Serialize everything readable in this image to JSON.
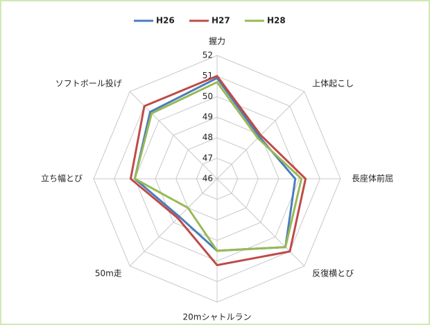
{
  "chart_data": {
    "type": "radar",
    "categories": [
      "握力",
      "上体起こし",
      "長座体前屈",
      "反復横とび",
      "20mシャトルラン",
      "50m走",
      "立ち幅とび",
      "ソフトボール投げ"
    ],
    "series": [
      {
        "name": "H26",
        "color": "#4a7ebb",
        "values": [
          50.9,
          48.9,
          49.8,
          50.7,
          49.5,
          48.6,
          50.0,
          50.6
        ]
      },
      {
        "name": "H27",
        "color": "#be4b48",
        "values": [
          51.0,
          49.0,
          50.3,
          51.0,
          50.2,
          48.7,
          50.2,
          51.0
        ]
      },
      {
        "name": "H28",
        "color": "#98b954",
        "values": [
          50.7,
          48.8,
          50.1,
          50.7,
          49.5,
          48.0,
          50.0,
          50.5
        ]
      }
    ],
    "rlim": [
      46,
      52
    ],
    "rticks": [
      46,
      47,
      48,
      49,
      50,
      51,
      52
    ],
    "grid": true,
    "legend": "top"
  }
}
